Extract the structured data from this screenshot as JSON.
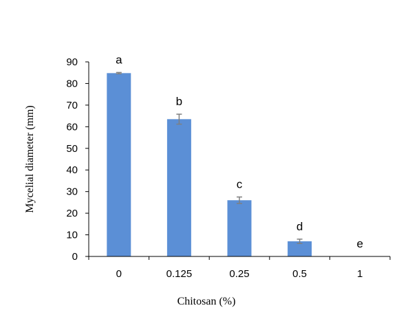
{
  "chart_data": {
    "type": "bar",
    "categories": [
      "0",
      "0.125",
      "0.25",
      "0.5",
      "1"
    ],
    "values": [
      84.8,
      63.5,
      26.0,
      7.0,
      0
    ],
    "errors": [
      0.3,
      2.3,
      1.5,
      1.0,
      0
    ],
    "significance_letters": [
      "a",
      "b",
      "c",
      "d",
      "e"
    ],
    "xlabel": "Chitosan (%)",
    "ylabel": "Mycelial  diameter (mm)",
    "ylim": [
      0,
      90
    ],
    "yticks": [
      0,
      10,
      20,
      30,
      40,
      50,
      60,
      70,
      80,
      90
    ],
    "grid": false,
    "legend": "none",
    "bar_color": "#5b8fd6",
    "error_bar_color": "#7f7f7f"
  }
}
